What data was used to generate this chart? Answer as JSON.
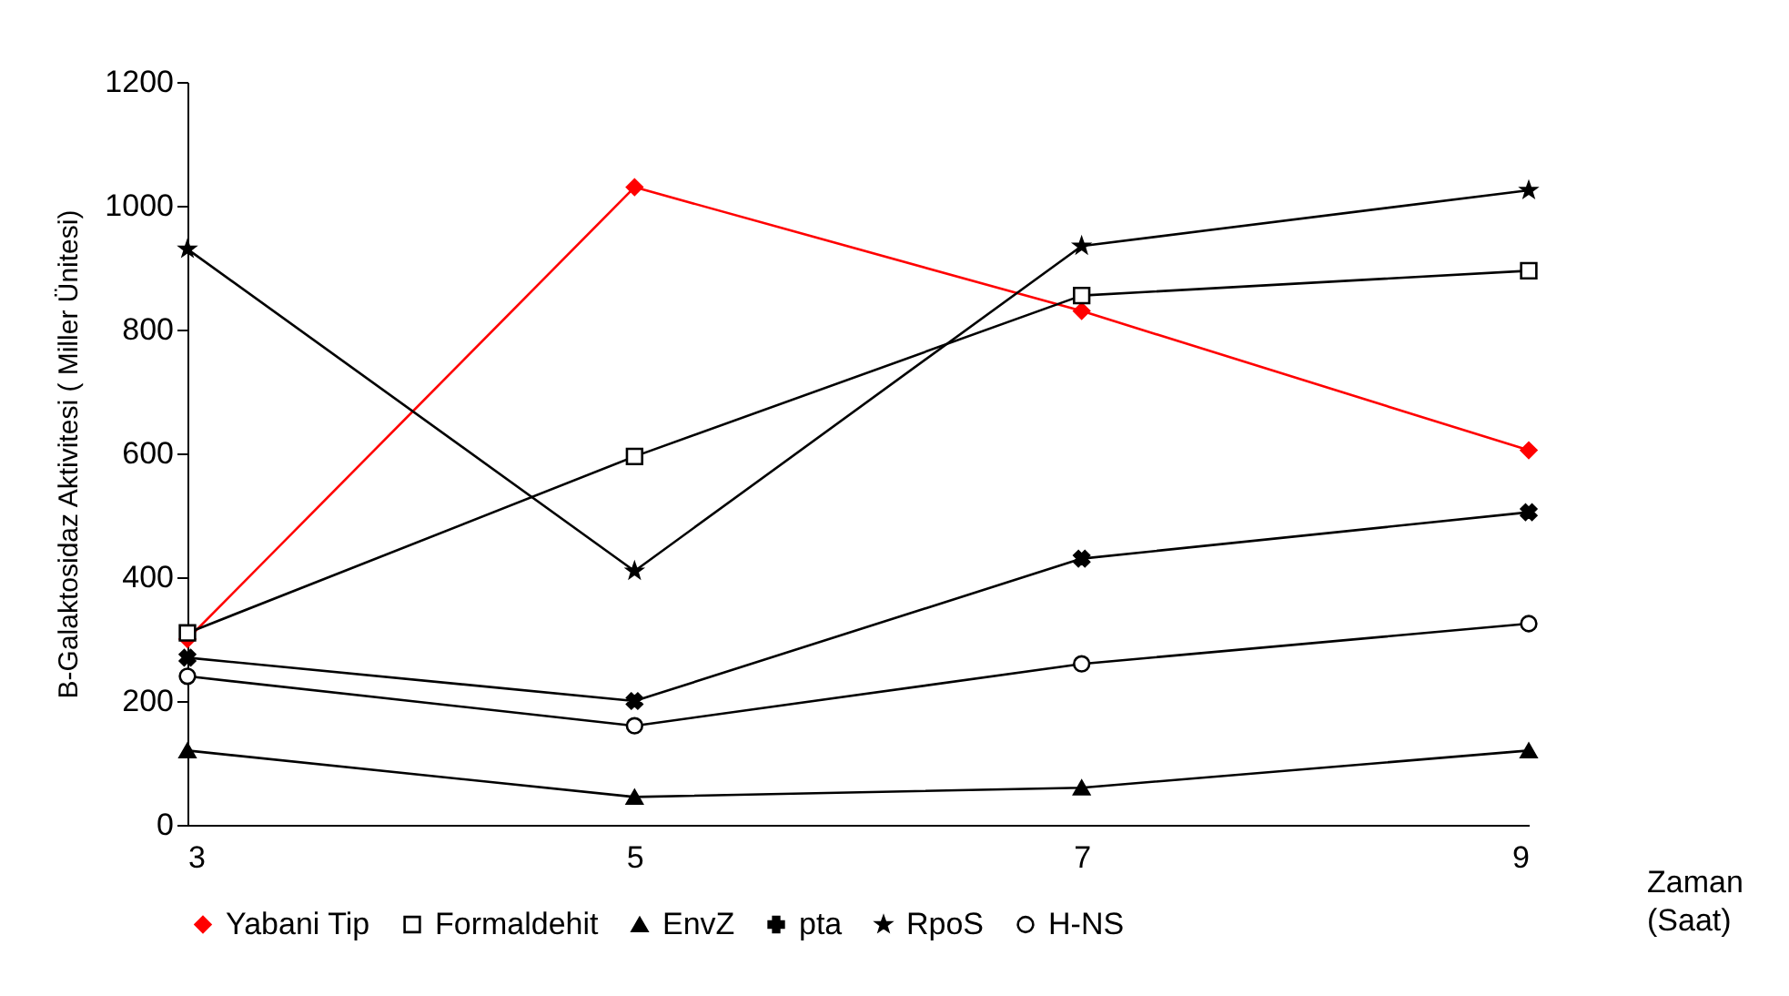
{
  "chart_data": {
    "type": "line",
    "xlabel": "Zaman (Saat)",
    "ylabel": "B-Galaktosidaz Aktivitesi ( Miller Ünitesi)",
    "x": [
      3,
      5,
      7,
      9
    ],
    "xlim": [
      3,
      9
    ],
    "xticks": [
      3,
      5,
      7,
      9
    ],
    "ylim": [
      0,
      1200
    ],
    "yticks": [
      0,
      200,
      400,
      600,
      800,
      1000,
      1200
    ],
    "grid": false,
    "legend": "bottom",
    "line_style": "solid",
    "series": [
      {
        "name": "Yabani Tip",
        "color": "#ff0000",
        "marker": "diamond",
        "values": [
          300,
          1030,
          830,
          605
        ]
      },
      {
        "name": "Formaldehit",
        "color": "#000000",
        "marker": "square",
        "values": [
          310,
          595,
          855,
          895
        ]
      },
      {
        "name": "EnvZ",
        "color": "#000000",
        "marker": "triangle",
        "values": [
          120,
          45,
          60,
          120
        ]
      },
      {
        "name": "pta",
        "color": "#000000",
        "marker": "cross",
        "values": [
          270,
          200,
          430,
          505
        ]
      },
      {
        "name": "RpoS",
        "color": "#000000",
        "marker": "star",
        "values": [
          930,
          410,
          935,
          1025
        ]
      },
      {
        "name": "H-NS",
        "color": "#000000",
        "marker": "circle",
        "values": [
          240,
          160,
          260,
          325
        ]
      }
    ]
  }
}
